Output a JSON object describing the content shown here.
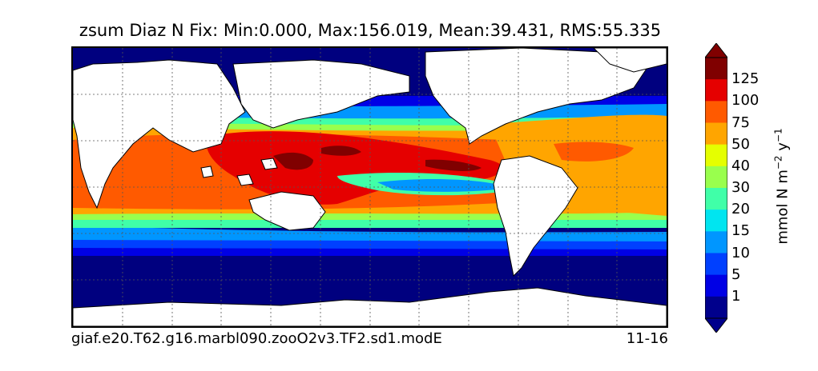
{
  "title": "zsum Diaz N Fix: Min:0.000, Max:156.019, Mean:39.431, RMS:55.335",
  "footer": {
    "run_id": "giaf.e20.T62.g16.marbl090.zooO2v3.TF2.sd1.modE",
    "period": "11-16"
  },
  "colorbar": {
    "label_main": "mmol N m",
    "label_exp1": "−2",
    "label_mid": " y",
    "label_exp2": "−1",
    "levels": [
      "125",
      "100",
      "75",
      "50",
      "40",
      "30",
      "20",
      "15",
      "10",
      "5",
      "1"
    ],
    "colors": [
      "#800000",
      "#e50000",
      "#ff5a00",
      "#ffa500",
      "#e5ff00",
      "#99ff4d",
      "#40ffa8",
      "#00e5f0",
      "#0096ff",
      "#0040ff",
      "#0000e5",
      "#00008c"
    ]
  },
  "palette": {
    "land": "#ffffff",
    "deep": "#00007f"
  }
}
